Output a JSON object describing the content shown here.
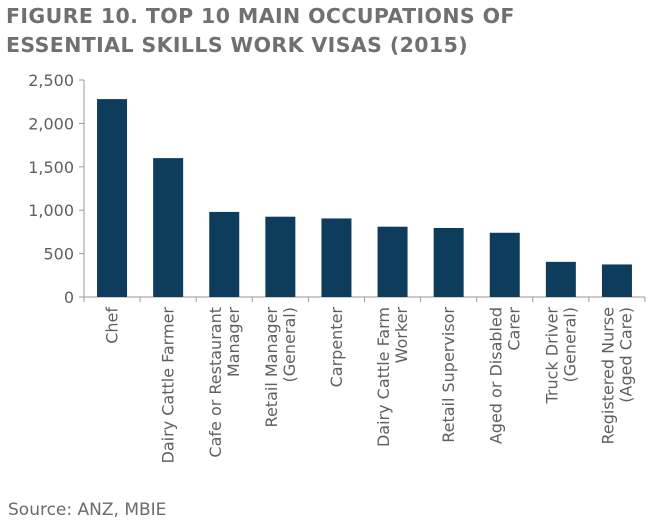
{
  "figure": {
    "title_line1": "FIGURE 10. TOP 10 MAIN OCCUPATIONS OF",
    "title_line2": "ESSENTIAL SKILLS WORK VISAS (2015)",
    "source": "Source: ANZ, MBIE"
  },
  "chart_data": {
    "type": "bar",
    "categories": [
      [
        "Chef"
      ],
      [
        "Dairy Cattle Farmer"
      ],
      [
        "Cafe or Restaurant",
        "Manager"
      ],
      [
        "Retail Manager",
        "(General)"
      ],
      [
        "Carpenter"
      ],
      [
        "Dairy Cattle Farm",
        "Worker"
      ],
      [
        "Retail Supervisor"
      ],
      [
        "Aged or Disabled",
        "Carer"
      ],
      [
        "Truck Driver",
        "(General)"
      ],
      [
        "Registered Nurse",
        "(Aged Care)"
      ]
    ],
    "values": [
      2280,
      1600,
      980,
      925,
      905,
      810,
      795,
      740,
      405,
      375
    ],
    "ylim": [
      0,
      2500
    ],
    "yticks": [
      0,
      500,
      1000,
      1500,
      2000,
      2500
    ],
    "ytick_labels": [
      "0",
      "500",
      "1,000",
      "1,500",
      "2,000",
      "2,500"
    ],
    "grid": false,
    "bar_color": "#0d3c5c",
    "axis_color": "#9a9a9a",
    "title": "",
    "xlabel": "",
    "ylabel": ""
  }
}
